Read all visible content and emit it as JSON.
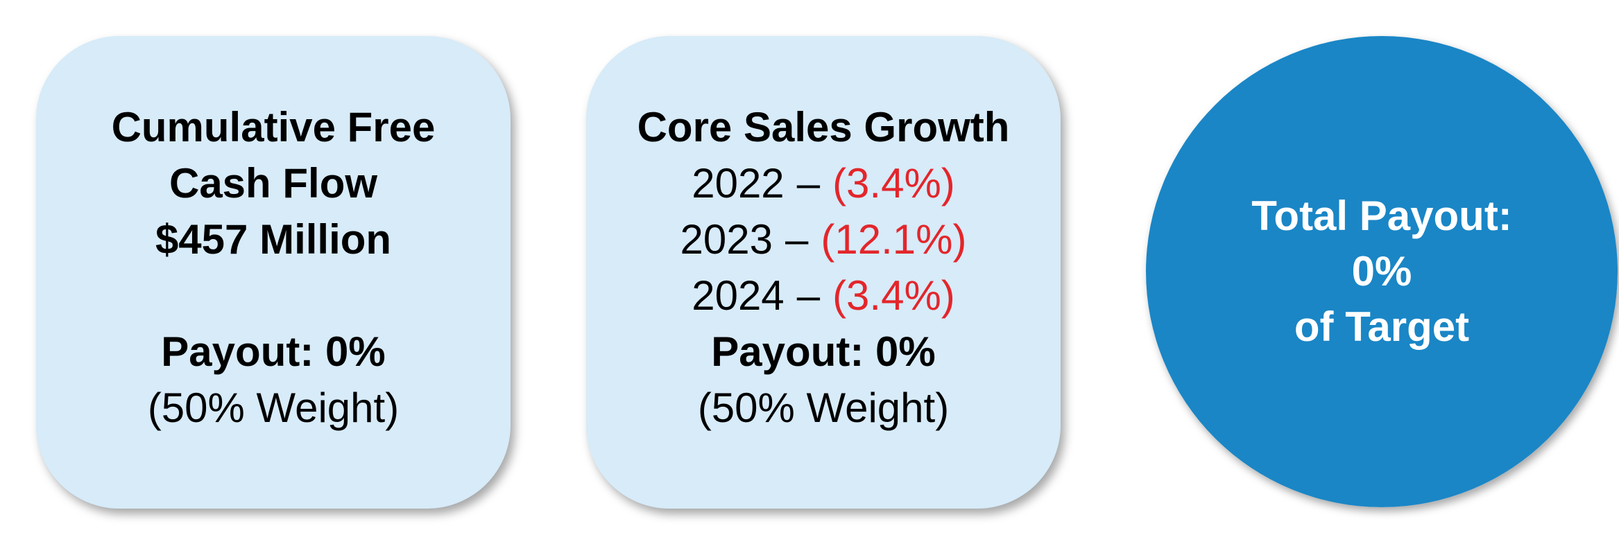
{
  "cards": [
    {
      "title": [
        "Cumulative Free",
        "Cash Flow",
        "$457 Million"
      ],
      "payout": "Payout: 0%",
      "weight": "(50% Weight)"
    },
    {
      "title": [
        "Core Sales Growth"
      ],
      "years": [
        {
          "year": "2022",
          "separator": "–",
          "value": "(3.4%)"
        },
        {
          "year": "2023",
          "separator": "–",
          "value": "(12.1%)"
        },
        {
          "year": "2024",
          "separator": "–",
          "value": "(3.4%)"
        }
      ],
      "payout": "Payout: 0%",
      "weight": "(50% Weight)"
    }
  ],
  "total": {
    "lines": [
      "Total Payout:",
      "0%",
      "of Target"
    ]
  }
}
